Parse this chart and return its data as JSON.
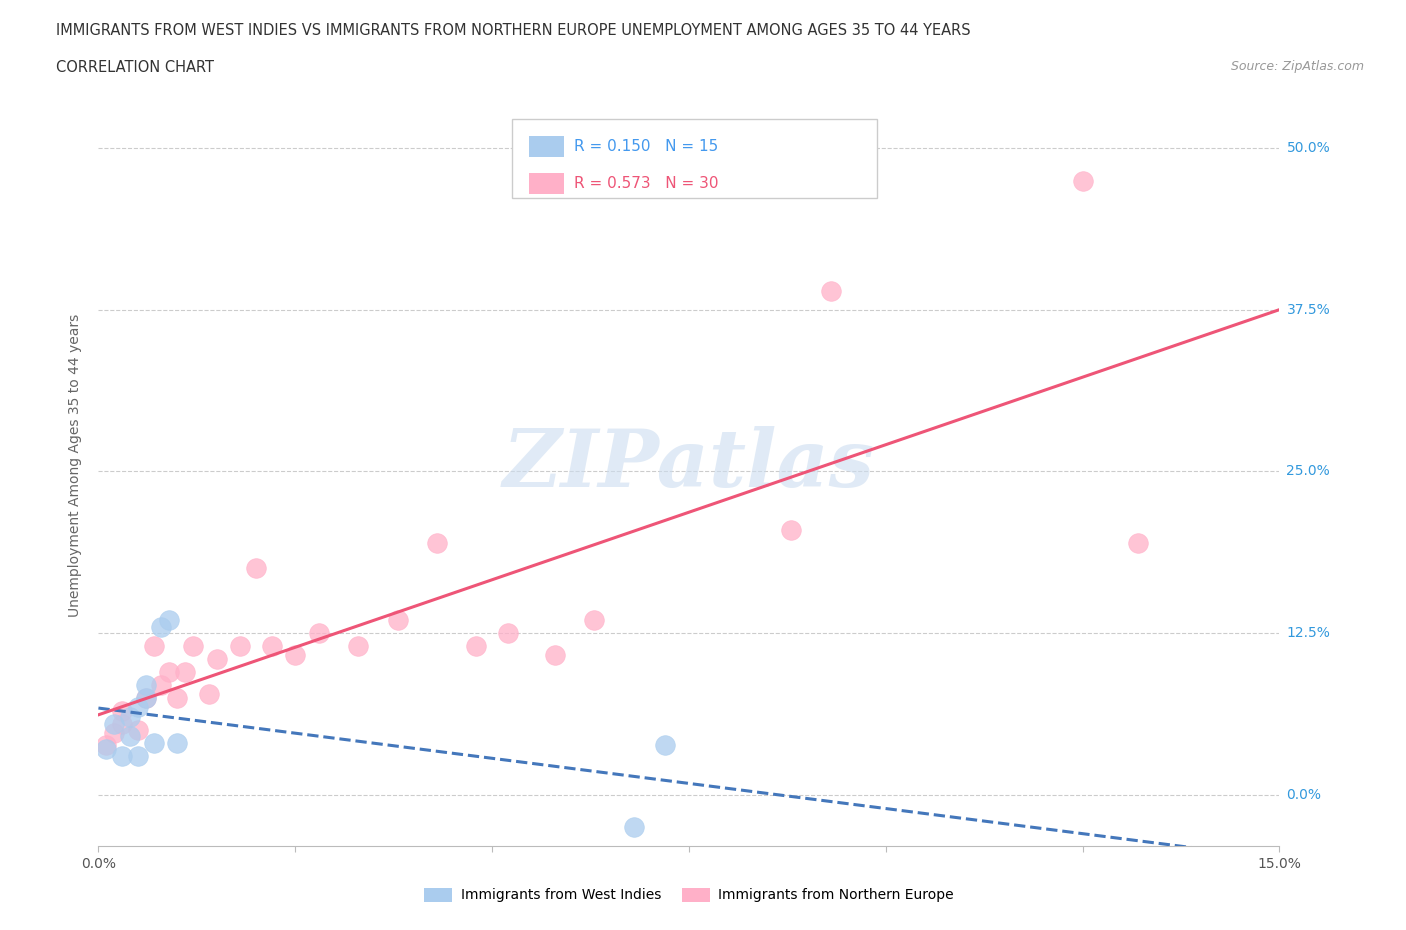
{
  "title_line1": "IMMIGRANTS FROM WEST INDIES VS IMMIGRANTS FROM NORTHERN EUROPE UNEMPLOYMENT AMONG AGES 35 TO 44 YEARS",
  "title_line2": "CORRELATION CHART",
  "source": "Source: ZipAtlas.com",
  "ylabel": "Unemployment Among Ages 35 to 44 years",
  "xlim": [
    0.0,
    0.15
  ],
  "ylim": [
    -0.04,
    0.55
  ],
  "yticks": [
    0.0,
    0.125,
    0.25,
    0.375,
    0.5
  ],
  "ytick_labels": [
    "0.0%",
    "12.5%",
    "25.0%",
    "37.5%",
    "50.0%"
  ],
  "xticks": [
    0.0,
    0.025,
    0.05,
    0.075,
    0.1,
    0.125,
    0.15
  ],
  "xtick_labels": [
    "0.0%",
    "",
    "",
    "",
    "",
    "",
    "15.0%"
  ],
  "blue_R": "0.150",
  "blue_N": "15",
  "pink_R": "0.573",
  "pink_N": "30",
  "blue_color": "#AACCEE",
  "pink_color": "#FFB0C8",
  "blue_line_color": "#4477BB",
  "pink_line_color": "#EE5577",
  "watermark": "ZIPatlas",
  "legend_label_blue": "Immigrants from West Indies",
  "legend_label_pink": "Immigrants from Northern Europe",
  "legend_color_blue": "#4499EE",
  "legend_color_pink": "#EE5577",
  "blue_scatter_x": [
    0.001,
    0.002,
    0.003,
    0.004,
    0.004,
    0.005,
    0.005,
    0.006,
    0.006,
    0.007,
    0.008,
    0.009,
    0.01,
    0.068,
    0.072
  ],
  "blue_scatter_y": [
    0.035,
    0.055,
    0.03,
    0.045,
    0.06,
    0.068,
    0.03,
    0.075,
    0.085,
    0.04,
    0.13,
    0.135,
    0.04,
    -0.025,
    0.038
  ],
  "pink_scatter_x": [
    0.001,
    0.002,
    0.003,
    0.003,
    0.005,
    0.006,
    0.007,
    0.008,
    0.009,
    0.01,
    0.011,
    0.012,
    0.014,
    0.015,
    0.018,
    0.02,
    0.022,
    0.025,
    0.028,
    0.033,
    0.038,
    0.043,
    0.048,
    0.052,
    0.058,
    0.063,
    0.088,
    0.093,
    0.125,
    0.132
  ],
  "pink_scatter_y": [
    0.038,
    0.048,
    0.055,
    0.065,
    0.05,
    0.075,
    0.115,
    0.085,
    0.095,
    0.075,
    0.095,
    0.115,
    0.078,
    0.105,
    0.115,
    0.175,
    0.115,
    0.108,
    0.125,
    0.115,
    0.135,
    0.195,
    0.115,
    0.125,
    0.108,
    0.135,
    0.205,
    0.39,
    0.475,
    0.195
  ]
}
